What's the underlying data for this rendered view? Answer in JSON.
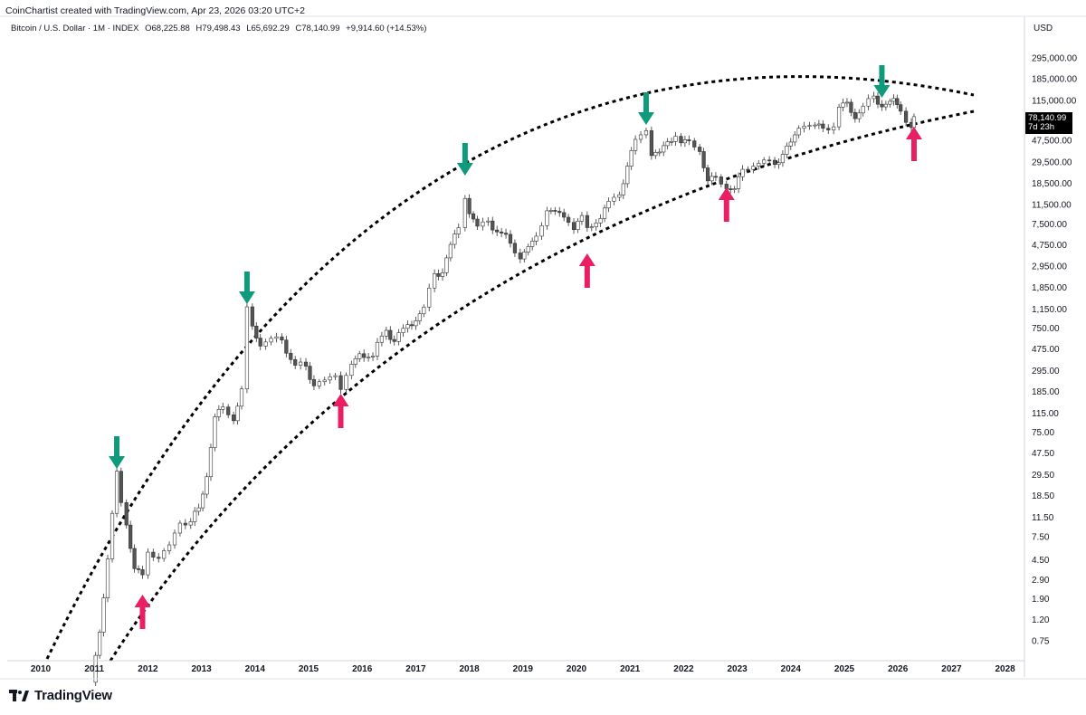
{
  "header": {
    "attribution": "CoinChartist created with TradingView.com, Apr 23, 2026 03:20 UTC+2"
  },
  "symbol": {
    "name": "Bitcoin / U.S. Dollar · 1M · INDEX",
    "open": "O68,225.88",
    "high": "H79,498.43",
    "low": "L65,692.29",
    "close": "C78,140.99",
    "change": "+9,914.60 (+14.53%)"
  },
  "price_scale": {
    "currency": "USD",
    "last_price": "78,140.99",
    "countdown": "7d 23h"
  },
  "footer": {
    "logo_text": "TradingView"
  },
  "colors": {
    "down_arrow": "#0e9a7b",
    "up_arrow": "#e91e63",
    "candle_up": "#ffffff",
    "candle_down": "#555555",
    "wick": "#333333",
    "grid": "#eeeeee"
  },
  "chart_data": {
    "type": "candlestick",
    "scale": "log",
    "y_tick_labels": [
      "295,000.00",
      "185,000.00",
      "115,000.00",
      "47,500.00",
      "29,500.00",
      "18,500.00",
      "11,500.00",
      "7,500.00",
      "4,750.00",
      "2,950.00",
      "1,850.00",
      "1,150.00",
      "750.00",
      "475.00",
      "295.00",
      "185.00",
      "115.00",
      "75.00",
      "47.50",
      "29.50",
      "18.50",
      "11.50",
      "7.50",
      "4.50",
      "2.90",
      "1.90",
      "1.20",
      "0.75"
    ],
    "x_tick_labels": [
      "2010",
      "2011",
      "2012",
      "2013",
      "2014",
      "2015",
      "2016",
      "2017",
      "2018",
      "2019",
      "2020",
      "2021",
      "2022",
      "2023",
      "2024",
      "2025",
      "2026",
      "2027",
      "2028"
    ],
    "series_points": [
      [
        2010.95,
        0.3
      ],
      [
        2011.1,
        0.9
      ],
      [
        2011.25,
        5
      ],
      [
        2011.42,
        30
      ],
      [
        2011.5,
        15
      ],
      [
        2011.6,
        10
      ],
      [
        2011.75,
        4
      ],
      [
        2011.9,
        3
      ],
      [
        2012.0,
        5
      ],
      [
        2012.2,
        5
      ],
      [
        2012.4,
        6
      ],
      [
        2012.6,
        10
      ],
      [
        2012.8,
        11
      ],
      [
        2012.95,
        13
      ],
      [
        2013.1,
        30
      ],
      [
        2013.25,
        110
      ],
      [
        2013.4,
        120
      ],
      [
        2013.6,
        100
      ],
      [
        2013.75,
        200
      ],
      [
        2013.85,
        1100
      ],
      [
        2013.95,
        750
      ],
      [
        2014.1,
        550
      ],
      [
        2014.3,
        600
      ],
      [
        2014.5,
        550
      ],
      [
        2014.75,
        350
      ],
      [
        2014.95,
        300
      ],
      [
        2015.1,
        230
      ],
      [
        2015.3,
        230
      ],
      [
        2015.5,
        260
      ],
      [
        2015.6,
        210
      ],
      [
        2015.8,
        320
      ],
      [
        2015.95,
        430
      ],
      [
        2016.2,
        430
      ],
      [
        2016.45,
        680
      ],
      [
        2016.6,
        600
      ],
      [
        2016.85,
        740
      ],
      [
        2017.0,
        960
      ],
      [
        2017.15,
        1200
      ],
      [
        2017.35,
        2300
      ],
      [
        2017.5,
        2800
      ],
      [
        2017.65,
        4700
      ],
      [
        2017.8,
        6400
      ],
      [
        2017.92,
        13800
      ],
      [
        2018.0,
        10200
      ],
      [
        2018.15,
        6900
      ],
      [
        2018.35,
        7500
      ],
      [
        2018.6,
        6600
      ],
      [
        2018.85,
        3700
      ],
      [
        2018.95,
        3800
      ],
      [
        2019.25,
        5300
      ],
      [
        2019.45,
        10800
      ],
      [
        2019.6,
        9600
      ],
      [
        2019.85,
        7500
      ],
      [
        2019.95,
        7200
      ],
      [
        2020.1,
        8600
      ],
      [
        2020.2,
        6400
      ],
      [
        2020.45,
        9200
      ],
      [
        2020.6,
        11600
      ],
      [
        2020.8,
        13800
      ],
      [
        2020.95,
        29000
      ],
      [
        2021.1,
        45000
      ],
      [
        2021.3,
        58000
      ],
      [
        2021.4,
        37000
      ],
      [
        2021.55,
        35000
      ],
      [
        2021.7,
        43800
      ],
      [
        2021.85,
        57000
      ],
      [
        2021.95,
        46300
      ],
      [
        2022.1,
        43000
      ],
      [
        2022.3,
        38000
      ],
      [
        2022.45,
        20000
      ],
      [
        2022.6,
        19400
      ],
      [
        2022.8,
        17000
      ],
      [
        2022.95,
        16500
      ],
      [
        2023.1,
        23000
      ],
      [
        2023.3,
        28500
      ],
      [
        2023.5,
        30500
      ],
      [
        2023.7,
        26900
      ],
      [
        2023.85,
        37700
      ],
      [
        2024.0,
        42500
      ],
      [
        2024.15,
        61000
      ],
      [
        2024.25,
        71300
      ],
      [
        2024.45,
        67500
      ],
      [
        2024.6,
        58900
      ],
      [
        2024.8,
        70200
      ],
      [
        2024.9,
        96400
      ],
      [
        2025.05,
        102000
      ],
      [
        2025.2,
        82500
      ],
      [
        2025.35,
        104600
      ],
      [
        2025.55,
        115700
      ],
      [
        2025.7,
        108200
      ],
      [
        2025.85,
        114000
      ],
      [
        2025.92,
        109600
      ],
      [
        2026.05,
        87500
      ],
      [
        2026.15,
        76000
      ],
      [
        2026.25,
        68225
      ],
      [
        2026.3,
        78140
      ]
    ],
    "annotations": [
      {
        "type": "down-arrow",
        "x": 2011.42
      },
      {
        "type": "down-arrow",
        "x": 2013.85
      },
      {
        "type": "down-arrow",
        "x": 2017.92
      },
      {
        "type": "down-arrow",
        "x": 2021.3
      },
      {
        "type": "down-arrow",
        "x": 2025.7
      },
      {
        "type": "up-arrow",
        "x": 2011.9
      },
      {
        "type": "up-arrow",
        "x": 2015.6
      },
      {
        "type": "up-arrow",
        "x": 2020.2
      },
      {
        "type": "up-arrow",
        "x": 2022.8
      },
      {
        "type": "up-arrow",
        "x": 2026.3
      }
    ],
    "trendlines": [
      {
        "name": "upper-curve",
        "style": "dotted"
      },
      {
        "name": "lower-curve",
        "style": "dotted"
      }
    ],
    "grid": false,
    "legend": "none"
  }
}
